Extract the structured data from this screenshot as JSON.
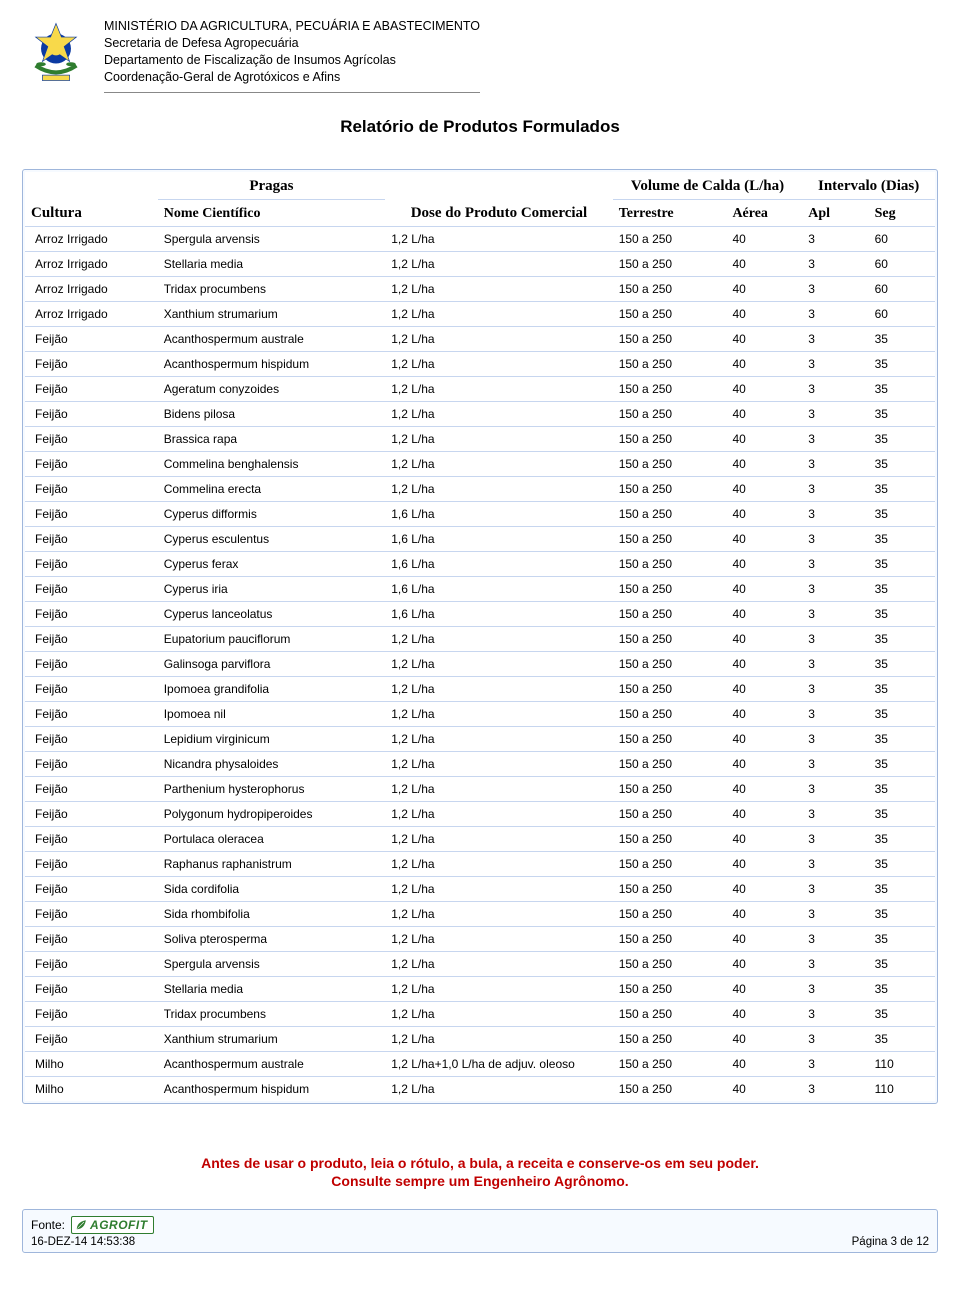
{
  "header": {
    "line1": "MINISTÉRIO DA AGRICULTURA, PECUÁRIA E ABASTECIMENTO",
    "line2": "Secretaria de Defesa Agropecuária",
    "line3": "Departamento de Fiscalização de Insumos Agrícolas",
    "line4": "Coordenação-Geral de Agrotóxicos e Afins"
  },
  "report_title": "Relatório de Produtos Formulados",
  "table": {
    "headers": {
      "cultura": "Cultura",
      "pragas": "Pragas",
      "nome_cientifico": "Nome Científico",
      "dose": "Dose do Produto Comercial",
      "volume": "Volume de Calda (L/ha)",
      "terrestre": "Terrestre",
      "aerea": "Aérea",
      "intervalo": "Intervalo (Dias)",
      "apl": "Apl",
      "seg": "Seg"
    },
    "rows": [
      {
        "cultura": "Arroz Irrigado",
        "praga": "Spergula arvensis",
        "dose": "1,2 L/ha",
        "terr": "150 a 250",
        "aerea": "40",
        "apl": "3",
        "seg": "60"
      },
      {
        "cultura": "Arroz Irrigado",
        "praga": "Stellaria media",
        "dose": "1,2 L/ha",
        "terr": "150 a 250",
        "aerea": "40",
        "apl": "3",
        "seg": "60"
      },
      {
        "cultura": "Arroz Irrigado",
        "praga": "Tridax procumbens",
        "dose": "1,2 L/ha",
        "terr": "150 a 250",
        "aerea": "40",
        "apl": "3",
        "seg": "60"
      },
      {
        "cultura": "Arroz Irrigado",
        "praga": "Xanthium strumarium",
        "dose": "1,2 L/ha",
        "terr": "150 a 250",
        "aerea": "40",
        "apl": "3",
        "seg": "60"
      },
      {
        "cultura": "Feijão",
        "praga": "Acanthospermum australe",
        "dose": "1,2 L/ha",
        "terr": "150 a 250",
        "aerea": "40",
        "apl": "3",
        "seg": "35"
      },
      {
        "cultura": "Feijão",
        "praga": "Acanthospermum hispidum",
        "dose": "1,2 L/ha",
        "terr": "150 a 250",
        "aerea": "40",
        "apl": "3",
        "seg": "35"
      },
      {
        "cultura": "Feijão",
        "praga": "Ageratum conyzoides",
        "dose": "1,2 L/ha",
        "terr": "150 a 250",
        "aerea": "40",
        "apl": "3",
        "seg": "35"
      },
      {
        "cultura": "Feijão",
        "praga": "Bidens pilosa",
        "dose": "1,2 L/ha",
        "terr": "150 a 250",
        "aerea": "40",
        "apl": "3",
        "seg": "35"
      },
      {
        "cultura": "Feijão",
        "praga": "Brassica rapa",
        "dose": "1,2 L/ha",
        "terr": "150 a 250",
        "aerea": "40",
        "apl": "3",
        "seg": "35"
      },
      {
        "cultura": "Feijão",
        "praga": "Commelina benghalensis",
        "dose": "1,2 L/ha",
        "terr": "150 a 250",
        "aerea": "40",
        "apl": "3",
        "seg": "35"
      },
      {
        "cultura": "Feijão",
        "praga": "Commelina erecta",
        "dose": "1,2 L/ha",
        "terr": "150 a 250",
        "aerea": "40",
        "apl": "3",
        "seg": "35"
      },
      {
        "cultura": "Feijão",
        "praga": "Cyperus difformis",
        "dose": "1,6 L/ha",
        "terr": "150 a 250",
        "aerea": "40",
        "apl": "3",
        "seg": "35"
      },
      {
        "cultura": "Feijão",
        "praga": "Cyperus esculentus",
        "dose": "1,6 L/ha",
        "terr": "150 a 250",
        "aerea": "40",
        "apl": "3",
        "seg": "35"
      },
      {
        "cultura": "Feijão",
        "praga": "Cyperus ferax",
        "dose": "1,6 L/ha",
        "terr": "150 a 250",
        "aerea": "40",
        "apl": "3",
        "seg": "35"
      },
      {
        "cultura": "Feijão",
        "praga": "Cyperus iria",
        "dose": "1,6 L/ha",
        "terr": "150 a 250",
        "aerea": "40",
        "apl": "3",
        "seg": "35"
      },
      {
        "cultura": "Feijão",
        "praga": "Cyperus lanceolatus",
        "dose": "1,6 L/ha",
        "terr": "150 a 250",
        "aerea": "40",
        "apl": "3",
        "seg": "35"
      },
      {
        "cultura": "Feijão",
        "praga": "Eupatorium pauciflorum",
        "dose": "1,2 L/ha",
        "terr": "150 a 250",
        "aerea": "40",
        "apl": "3",
        "seg": "35"
      },
      {
        "cultura": "Feijão",
        "praga": "Galinsoga parviflora",
        "dose": "1,2 L/ha",
        "terr": "150 a 250",
        "aerea": "40",
        "apl": "3",
        "seg": "35"
      },
      {
        "cultura": "Feijão",
        "praga": "Ipomoea grandifolia",
        "dose": "1,2 L/ha",
        "terr": "150 a 250",
        "aerea": "40",
        "apl": "3",
        "seg": "35"
      },
      {
        "cultura": "Feijão",
        "praga": "Ipomoea nil",
        "dose": "1,2 L/ha",
        "terr": "150 a 250",
        "aerea": "40",
        "apl": "3",
        "seg": "35"
      },
      {
        "cultura": "Feijão",
        "praga": "Lepidium virginicum",
        "dose": "1,2 L/ha",
        "terr": "150 a 250",
        "aerea": "40",
        "apl": "3",
        "seg": "35"
      },
      {
        "cultura": "Feijão",
        "praga": "Nicandra physaloides",
        "dose": "1,2 L/ha",
        "terr": "150 a 250",
        "aerea": "40",
        "apl": "3",
        "seg": "35"
      },
      {
        "cultura": "Feijão",
        "praga": "Parthenium hysterophorus",
        "dose": "1,2 L/ha",
        "terr": "150 a 250",
        "aerea": "40",
        "apl": "3",
        "seg": "35"
      },
      {
        "cultura": "Feijão",
        "praga": "Polygonum hydropiperoides",
        "dose": "1,2 L/ha",
        "terr": "150 a 250",
        "aerea": "40",
        "apl": "3",
        "seg": "35"
      },
      {
        "cultura": "Feijão",
        "praga": "Portulaca oleracea",
        "dose": "1,2 L/ha",
        "terr": "150 a 250",
        "aerea": "40",
        "apl": "3",
        "seg": "35"
      },
      {
        "cultura": "Feijão",
        "praga": "Raphanus raphanistrum",
        "dose": "1,2 L/ha",
        "terr": "150 a 250",
        "aerea": "40",
        "apl": "3",
        "seg": "35"
      },
      {
        "cultura": "Feijão",
        "praga": "Sida cordifolia",
        "dose": "1,2 L/ha",
        "terr": "150 a 250",
        "aerea": "40",
        "apl": "3",
        "seg": "35"
      },
      {
        "cultura": "Feijão",
        "praga": "Sida rhombifolia",
        "dose": "1,2 L/ha",
        "terr": "150 a 250",
        "aerea": "40",
        "apl": "3",
        "seg": "35"
      },
      {
        "cultura": "Feijão",
        "praga": "Soliva pterosperma",
        "dose": "1,2 L/ha",
        "terr": "150 a 250",
        "aerea": "40",
        "apl": "3",
        "seg": "35"
      },
      {
        "cultura": "Feijão",
        "praga": "Spergula arvensis",
        "dose": "1,2 L/ha",
        "terr": "150 a 250",
        "aerea": "40",
        "apl": "3",
        "seg": "35"
      },
      {
        "cultura": "Feijão",
        "praga": "Stellaria media",
        "dose": "1,2 L/ha",
        "terr": "150 a 250",
        "aerea": "40",
        "apl": "3",
        "seg": "35"
      },
      {
        "cultura": "Feijão",
        "praga": "Tridax procumbens",
        "dose": "1,2 L/ha",
        "terr": "150 a 250",
        "aerea": "40",
        "apl": "3",
        "seg": "35"
      },
      {
        "cultura": "Feijão",
        "praga": "Xanthium strumarium",
        "dose": "1,2 L/ha",
        "terr": "150 a 250",
        "aerea": "40",
        "apl": "3",
        "seg": "35"
      },
      {
        "cultura": "Milho",
        "praga": "Acanthospermum australe",
        "dose": "1,2 L/ha+1,0 L/ha de adjuv. oleoso",
        "terr": "150 a 250",
        "aerea": "40",
        "apl": "3",
        "seg": "110"
      },
      {
        "cultura": "Milho",
        "praga": "Acanthospermum hispidum",
        "dose": "1,2 L/ha",
        "terr": "150 a 250",
        "aerea": "40",
        "apl": "3",
        "seg": "110"
      }
    ]
  },
  "warning": {
    "line1": "Antes de usar o produto, leia o rótulo, a bula, a receita e conserve-os em seu poder.",
    "line2": "Consulte sempre um Engenheiro Agrônomo."
  },
  "footer": {
    "fonte_label": "Fonte:",
    "agrofit": "AGROFIT",
    "timestamp": "16-DEZ-14 14:53:38",
    "page": "Página 3 de 12"
  },
  "colors": {
    "warning": "#c00000",
    "frame_border": "#9fb6db",
    "row_border": "#c7d6ef",
    "agrofit_green": "#2f7d2f"
  }
}
